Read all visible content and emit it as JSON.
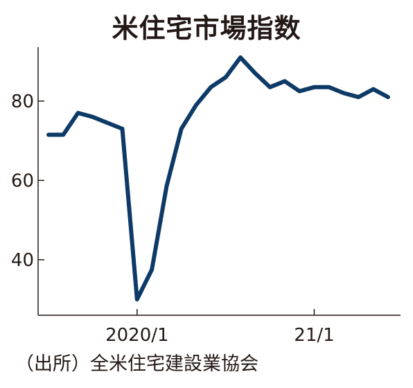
{
  "chart_data": {
    "type": "line",
    "title": "米住宅市場指数",
    "source": "（出所）全米住宅建設業協会",
    "xlabel": "",
    "ylabel": "",
    "x": [
      "2019-07",
      "2019-08",
      "2019-09",
      "2019-10",
      "2019-11",
      "2019-12",
      "2020-01",
      "2020-02",
      "2020-03",
      "2020-04",
      "2020-05",
      "2020-06",
      "2020-07",
      "2020-08",
      "2020-09",
      "2020-10",
      "2020-11",
      "2020-12",
      "2021-01",
      "2021-02",
      "2021-03",
      "2021-04",
      "2021-05",
      "2021-06"
    ],
    "x_tick_labels": [
      {
        "x": "2020-01",
        "label": "2020/1"
      },
      {
        "x": "2021-01",
        "label": "21/1"
      }
    ],
    "y_ticks": [
      40,
      60,
      80
    ],
    "ylim": [
      26,
      95
    ],
    "series": [
      {
        "values": [
          71.5,
          71.5,
          77,
          76,
          74.5,
          73,
          30,
          37.5,
          58.5,
          73,
          79,
          83.5,
          86,
          91,
          87,
          83.5,
          85,
          82.5,
          83.5,
          83.5,
          82,
          81,
          83,
          81
        ],
        "color": "#0d3a66"
      }
    ],
    "grid": false,
    "legend": "none"
  }
}
